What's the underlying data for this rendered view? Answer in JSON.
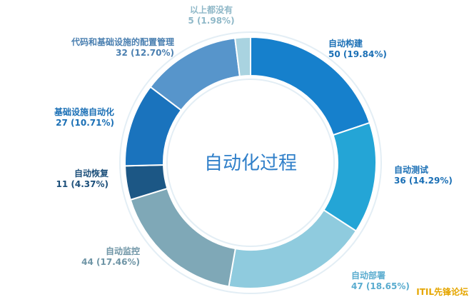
{
  "chart_data": {
    "type": "pie",
    "variant": "donut",
    "center_title": "自动化过程",
    "slices": [
      {
        "name": "自动构建",
        "value": 50,
        "pct": "19.84%",
        "color": "#1680cc",
        "label_color": "#1a6fb5"
      },
      {
        "name": "自动测试",
        "value": 36,
        "pct": "14.29%",
        "color": "#24a5d6",
        "label_color": "#1a6fb5"
      },
      {
        "name": "自动部署",
        "value": 47,
        "pct": "18.65%",
        "color": "#8fcbde",
        "label_color": "#5aaccf"
      },
      {
        "name": "自动监控",
        "value": 44,
        "pct": "17.46%",
        "color": "#7fa8b7",
        "label_color": "#6f95a6"
      },
      {
        "name": "自动恢复",
        "value": 11,
        "pct": "4.37%",
        "color": "#1c5785",
        "label_color": "#1c4f7a"
      },
      {
        "name": "基础设施自动化",
        "value": 27,
        "pct": "10.71%",
        "color": "#1a73bd",
        "label_color": "#1a6fb5"
      },
      {
        "name": "代码和基础设施的配置管理",
        "value": 32,
        "pct": "12.70%",
        "color": "#5795cb",
        "label_color": "#4a7fb0"
      },
      {
        "name": "以上都没有",
        "value": 5,
        "pct": "1.98%",
        "color": "#a9d3e0",
        "label_color": "#8fb8c8"
      }
    ]
  },
  "watermark": "ITIL先锋论坛"
}
